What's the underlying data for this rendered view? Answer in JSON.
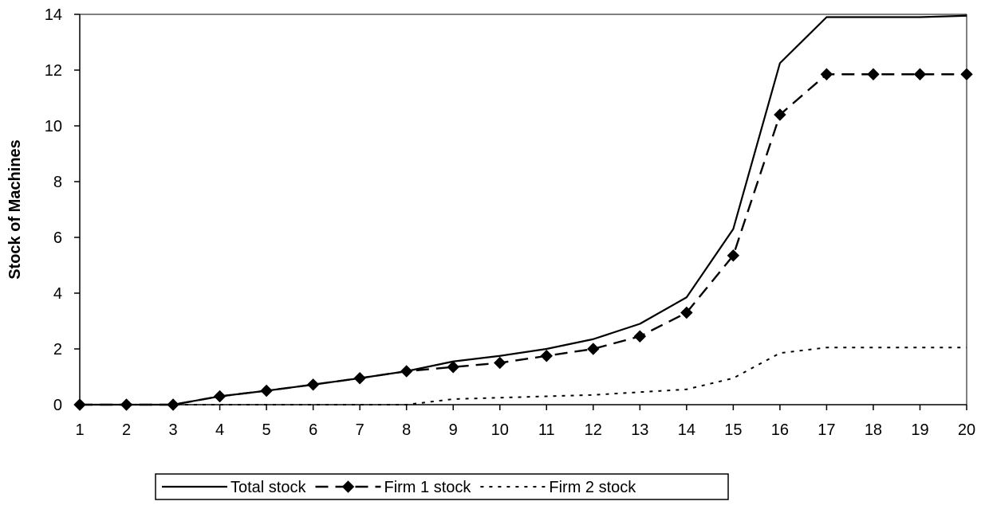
{
  "chart_data": {
    "type": "line",
    "title": "",
    "xlabel": "",
    "ylabel": "Stock of Machines",
    "x": [
      1,
      2,
      3,
      4,
      5,
      6,
      7,
      8,
      9,
      10,
      11,
      12,
      13,
      14,
      15,
      16,
      17,
      18,
      19,
      20
    ],
    "xlim": [
      1,
      20
    ],
    "ylim": [
      0,
      14
    ],
    "yticks": [
      0,
      2,
      4,
      6,
      8,
      10,
      12,
      14
    ],
    "grid": false,
    "legend_position": "bottom",
    "series": [
      {
        "name": "Total stock",
        "style": "solid",
        "marker": "none",
        "color": "#000000",
        "values": [
          0,
          0,
          0,
          0.3,
          0.5,
          0.72,
          0.95,
          1.2,
          1.55,
          1.75,
          2.0,
          2.35,
          2.9,
          3.85,
          6.3,
          12.25,
          13.9,
          13.9,
          13.9,
          13.95
        ]
      },
      {
        "name": "Firm 1 stock",
        "style": "dashed",
        "marker": "diamond",
        "color": "#000000",
        "values": [
          0,
          0,
          0,
          0.3,
          0.5,
          0.72,
          0.95,
          1.2,
          1.35,
          1.5,
          1.75,
          2.0,
          2.45,
          3.3,
          5.35,
          10.4,
          11.85,
          11.85,
          11.85,
          11.85
        ]
      },
      {
        "name": "Firm 2 stock",
        "style": "dotted",
        "marker": "none",
        "color": "#000000",
        "values": [
          0,
          0,
          0,
          0,
          0,
          0,
          0,
          0,
          0.2,
          0.25,
          0.3,
          0.35,
          0.45,
          0.55,
          0.95,
          1.85,
          2.05,
          2.05,
          2.05,
          2.05
        ]
      }
    ]
  }
}
